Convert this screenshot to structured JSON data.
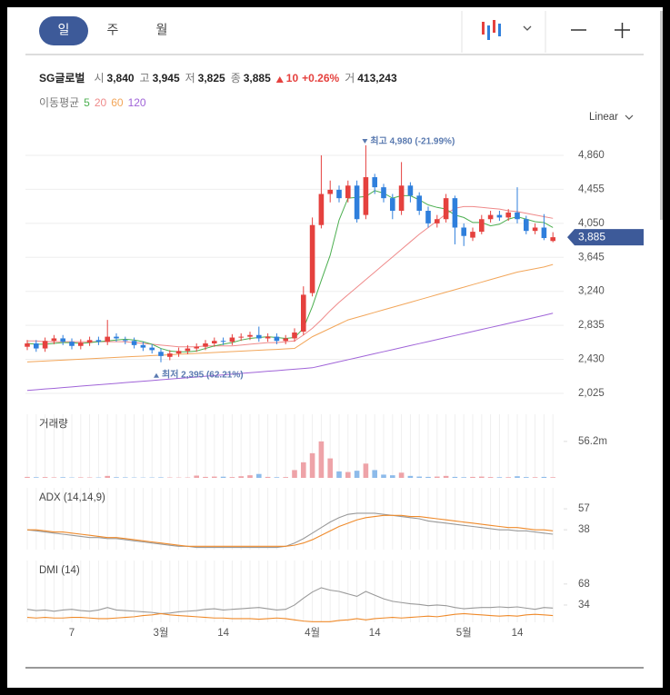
{
  "toolbar": {
    "tabs": [
      "일",
      "주",
      "월"
    ]
  },
  "header": {
    "name": "SG글로벌",
    "fields": [
      {
        "label": "시",
        "value": "3,840"
      },
      {
        "label": "고",
        "value": "3,945"
      },
      {
        "label": "저",
        "value": "3,825"
      },
      {
        "label": "종",
        "value": "3,885"
      }
    ],
    "change": "10",
    "change_percent": "+0.26%",
    "volume_label": "거",
    "volume": "413,243"
  },
  "chart_data": [
    {
      "type": "candlestick",
      "scale_label": "Linear",
      "legend_title": "이동평균",
      "up_color": "#e5413e",
      "down_color": "#2f7fdc",
      "categories": [
        null,
        null,
        null,
        null,
        null,
        "7",
        null,
        null,
        null,
        null,
        null,
        null,
        null,
        null,
        null,
        "3월",
        null,
        null,
        null,
        null,
        null,
        null,
        "14",
        null,
        null,
        null,
        null,
        null,
        null,
        null,
        null,
        null,
        "4월",
        null,
        null,
        null,
        null,
        null,
        null,
        "14",
        null,
        null,
        null,
        null,
        null,
        null,
        null,
        null,
        null,
        "5월",
        null,
        null,
        null,
        null,
        null,
        "14",
        null,
        null,
        null,
        null
      ],
      "open": [
        2580,
        2620,
        2560,
        2650,
        2680,
        2640,
        2590,
        2630,
        2660,
        2640,
        2700,
        2660,
        2650,
        2600,
        2570,
        2520,
        2460,
        2500,
        2530,
        2560,
        2580,
        2620,
        2650,
        2640,
        2690,
        2700,
        2720,
        2680,
        2700,
        2650,
        2680,
        2760,
        3220,
        4030,
        4400,
        4450,
        4350,
        4500,
        4150,
        4600,
        4480,
        4350,
        4200,
        4500,
        4380,
        4200,
        4050,
        4100,
        4350,
        4000,
        3880,
        3950,
        4100,
        4150,
        4120,
        4180,
        4100,
        3960,
        4000,
        3840
      ],
      "high": [
        2660,
        2660,
        2690,
        2720,
        2720,
        2680,
        2670,
        2700,
        2700,
        2900,
        2740,
        2700,
        2690,
        2640,
        2610,
        2560,
        2540,
        2570,
        2600,
        2620,
        2660,
        2690,
        2690,
        2730,
        2740,
        2760,
        2820,
        2740,
        2740,
        2720,
        2800,
        3300,
        4120,
        4860,
        4560,
        4500,
        4560,
        4560,
        4980,
        4640,
        4520,
        4400,
        4780,
        4540,
        4420,
        4250,
        4150,
        4400,
        4380,
        4050,
        4000,
        4150,
        4200,
        4200,
        4220,
        4480,
        4140,
        4050,
        4160,
        3945
      ],
      "low": [
        2540,
        2520,
        2520,
        2610,
        2600,
        2550,
        2550,
        2590,
        2600,
        2600,
        2640,
        2610,
        2560,
        2530,
        2500,
        2395,
        2420,
        2460,
        2490,
        2520,
        2540,
        2580,
        2600,
        2600,
        2650,
        2660,
        2640,
        2640,
        2610,
        2610,
        2640,
        2720,
        3180,
        3990,
        4300,
        4300,
        4300,
        4060,
        4100,
        4400,
        4300,
        4100,
        4150,
        4300,
        4150,
        4000,
        4000,
        4060,
        3800,
        3780,
        3840,
        3920,
        4060,
        4080,
        4080,
        4050,
        3920,
        3920,
        3850,
        3825
      ],
      "close": [
        2620,
        2560,
        2650,
        2680,
        2640,
        2590,
        2630,
        2660,
        2640,
        2700,
        2680,
        2650,
        2600,
        2570,
        2540,
        2470,
        2500,
        2530,
        2560,
        2580,
        2620,
        2650,
        2640,
        2690,
        2700,
        2720,
        2680,
        2700,
        2650,
        2680,
        2750,
        3200,
        4030,
        4400,
        4450,
        4350,
        4500,
        4100,
        4600,
        4480,
        4350,
        4200,
        4500,
        4380,
        4200,
        4050,
        4100,
        4350,
        4000,
        3900,
        3950,
        4100,
        4150,
        4120,
        4180,
        4100,
        3960,
        4000,
        3875,
        3885
      ],
      "moving_averages": [
        {
          "name": "5",
          "color": "#4caf50",
          "values": [
            2620,
            2610,
            2610,
            2620,
            2630,
            2630,
            2620,
            2630,
            2640,
            2650,
            2660,
            2670,
            2660,
            2640,
            2610,
            2560,
            2530,
            2520,
            2520,
            2530,
            2560,
            2590,
            2610,
            2630,
            2660,
            2680,
            2690,
            2700,
            2690,
            2680,
            2690,
            2800,
            3060,
            3370,
            3670,
            4090,
            4350,
            4360,
            4370,
            4440,
            4410,
            4350,
            4380,
            4380,
            4330,
            4270,
            4240,
            4220,
            4150,
            4120,
            4060,
            4060,
            4020,
            4040,
            4100,
            4130,
            4100,
            4070,
            4060,
            4000
          ]
        },
        {
          "name": "20",
          "color": "#ef8a8a",
          "values": [
            2650,
            2650,
            2640,
            2640,
            2640,
            2640,
            2640,
            2640,
            2640,
            2640,
            2640,
            2640,
            2630,
            2620,
            2610,
            2600,
            2590,
            2580,
            2580,
            2580,
            2590,
            2590,
            2590,
            2590,
            2600,
            2610,
            2620,
            2630,
            2630,
            2640,
            2650,
            2720,
            2800,
            2900,
            3010,
            3110,
            3200,
            3290,
            3380,
            3470,
            3560,
            3650,
            3740,
            3830,
            3920,
            4000,
            4080,
            4160,
            4230,
            4250,
            4250,
            4240,
            4230,
            4220,
            4200,
            4190,
            4170,
            4150,
            4130,
            4110
          ]
        },
        {
          "name": "60",
          "color": "#f2a65a",
          "values": [
            2400,
            2405,
            2410,
            2416,
            2421,
            2427,
            2432,
            2437,
            2443,
            2448,
            2453,
            2459,
            2464,
            2469,
            2475,
            2480,
            2485,
            2491,
            2496,
            2501,
            2507,
            2512,
            2517,
            2523,
            2528,
            2533,
            2539,
            2544,
            2549,
            2555,
            2560,
            2630,
            2700,
            2750,
            2800,
            2850,
            2900,
            2930,
            2960,
            2990,
            3020,
            3050,
            3080,
            3110,
            3140,
            3170,
            3200,
            3230,
            3260,
            3290,
            3320,
            3350,
            3380,
            3410,
            3440,
            3470,
            3490,
            3510,
            3530,
            3560
          ]
        },
        {
          "name": "120",
          "color": "#a064d8",
          "values": [
            2060,
            2068,
            2077,
            2085,
            2094,
            2102,
            2111,
            2119,
            2128,
            2136,
            2144,
            2153,
            2161,
            2170,
            2178,
            2187,
            2195,
            2203,
            2212,
            2220,
            2229,
            2237,
            2246,
            2254,
            2263,
            2271,
            2279,
            2288,
            2296,
            2305,
            2313,
            2321,
            2330,
            2354,
            2378,
            2402,
            2426,
            2450,
            2474,
            2498,
            2522,
            2546,
            2570,
            2594,
            2618,
            2642,
            2666,
            2690,
            2714,
            2738,
            2762,
            2786,
            2810,
            2834,
            2858,
            2882,
            2906,
            2930,
            2954,
            2980
          ]
        }
      ],
      "high_label": "최고 4,980 (-21.99%)",
      "low_label": "최저 2,395 (62.21%)",
      "last_price_label": "3,885",
      "ylim": [
        1895,
        5109
      ],
      "yticks": [
        {
          "value": 4860,
          "label": "4,860"
        },
        {
          "value": 4455,
          "label": "4,455"
        },
        {
          "value": 4050,
          "label": "4,050"
        },
        {
          "value": 3645,
          "label": "3,645"
        },
        {
          "value": 3240,
          "label": "3,240"
        },
        {
          "value": 2835,
          "label": "2,835"
        },
        {
          "value": 2430,
          "label": "2,430"
        },
        {
          "value": 2025,
          "label": "2,025"
        }
      ],
      "grid": true
    },
    {
      "type": "bar",
      "title": "거래량",
      "up_color": "#eea3a8",
      "down_color": "#8dbbea",
      "values": [
        1.5,
        1,
        1.2,
        0.8,
        1,
        0.6,
        0.8,
        0.7,
        0.6,
        3,
        1,
        0.8,
        0.6,
        0.5,
        0.6,
        0.8,
        0.6,
        0.5,
        0.6,
        3.5,
        1.5,
        2,
        1.8,
        1.2,
        2.5,
        4,
        6,
        1.5,
        1,
        1.2,
        12,
        24,
        38,
        56.2,
        30,
        10,
        9,
        11,
        22,
        12,
        5,
        4,
        8,
        3,
        2,
        1.5,
        2,
        3,
        1.5,
        1,
        1.5,
        2,
        1.2,
        1,
        1,
        2.5,
        1.2,
        1,
        1.5,
        1
      ],
      "ylim": [
        0,
        98
      ],
      "yticks": [
        {
          "value": 56.2,
          "label": "56.2m"
        }
      ]
    },
    {
      "type": "line",
      "title": "ADX (14,14,9)",
      "ylim": [
        20,
        76
      ],
      "yticks": [
        57,
        38
      ],
      "series": [
        {
          "color": "#999999",
          "values": [
            38,
            37,
            36,
            35,
            34,
            33,
            32,
            31,
            31,
            30,
            30,
            29,
            28,
            27,
            26,
            25,
            24,
            23,
            23,
            22,
            22,
            22,
            22,
            22,
            22,
            22,
            22,
            22,
            22,
            23,
            26,
            30,
            35,
            40,
            45,
            49,
            52,
            53,
            53,
            53,
            52,
            51,
            50,
            49,
            48,
            46,
            45,
            44,
            43,
            42,
            41,
            40,
            39,
            38,
            38,
            37,
            37,
            36,
            35,
            34
          ]
        },
        {
          "color": "#ef8a2a",
          "values": [
            38,
            38,
            37,
            36,
            36,
            35,
            34,
            33,
            32,
            31,
            31,
            30,
            29,
            28,
            27,
            26,
            25,
            24,
            23,
            23,
            23,
            23,
            23,
            23,
            23,
            23,
            23,
            23,
            23,
            23,
            24,
            26,
            29,
            33,
            37,
            41,
            44,
            47,
            49,
            50,
            51,
            51,
            51,
            50,
            50,
            49,
            48,
            47,
            46,
            45,
            44,
            43,
            42,
            41,
            40,
            40,
            39,
            38,
            38,
            37
          ]
        }
      ]
    },
    {
      "type": "line",
      "title": "DMI (14)",
      "ylim": [
        6,
        106
      ],
      "yticks": [
        68,
        34
      ],
      "series": [
        {
          "color": "#999999",
          "values": [
            27,
            25,
            26,
            24,
            26,
            27,
            25,
            24,
            26,
            30,
            26,
            25,
            24,
            23,
            22,
            20,
            21,
            23,
            24,
            25,
            27,
            28,
            26,
            27,
            28,
            29,
            30,
            28,
            26,
            27,
            34,
            45,
            55,
            62,
            58,
            56,
            52,
            48,
            56,
            50,
            44,
            40,
            38,
            36,
            35,
            33,
            34,
            33,
            30,
            28,
            29,
            30,
            30,
            31,
            30,
            31,
            29,
            27,
            30,
            29
          ]
        },
        {
          "color": "#ef8a2a",
          "values": [
            14,
            13,
            14,
            13,
            13,
            14,
            14,
            13,
            12,
            12,
            13,
            14,
            15,
            17,
            18,
            20,
            18,
            17,
            16,
            15,
            14,
            13,
            13,
            12,
            12,
            12,
            11,
            12,
            13,
            12,
            10,
            8,
            7,
            7,
            7,
            9,
            10,
            12,
            10,
            12,
            13,
            14,
            13,
            14,
            15,
            16,
            15,
            17,
            19,
            20,
            19,
            18,
            17,
            16,
            17,
            16,
            18,
            19,
            18,
            17
          ]
        }
      ]
    }
  ]
}
